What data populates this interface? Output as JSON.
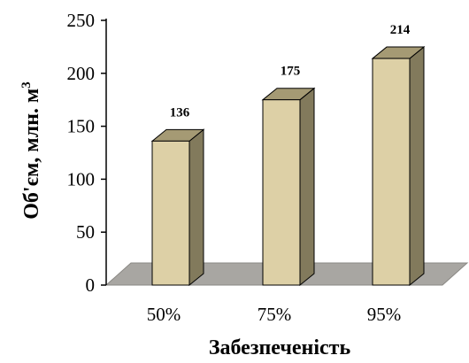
{
  "chart_data": {
    "type": "bar",
    "categories": [
      "50%",
      "75%",
      "95%"
    ],
    "values": [
      136,
      175,
      214
    ],
    "data_labels": [
      "136",
      "175",
      "214"
    ],
    "xlabel": "Забезпеченість",
    "ylabel": "Об'єм, млн. м",
    "ylabel_superscript": "3",
    "ylim": [
      0,
      250
    ],
    "yticks": [
      0,
      50,
      100,
      150,
      200,
      250
    ],
    "grid": false,
    "legend": "none",
    "style": "3d-column",
    "colors": {
      "bar_front": "#DDD0A6",
      "bar_side": "#827A5C",
      "bar_top": "#A59A74",
      "floor": "#A8A6A2",
      "bar_edge": "#000000"
    }
  }
}
